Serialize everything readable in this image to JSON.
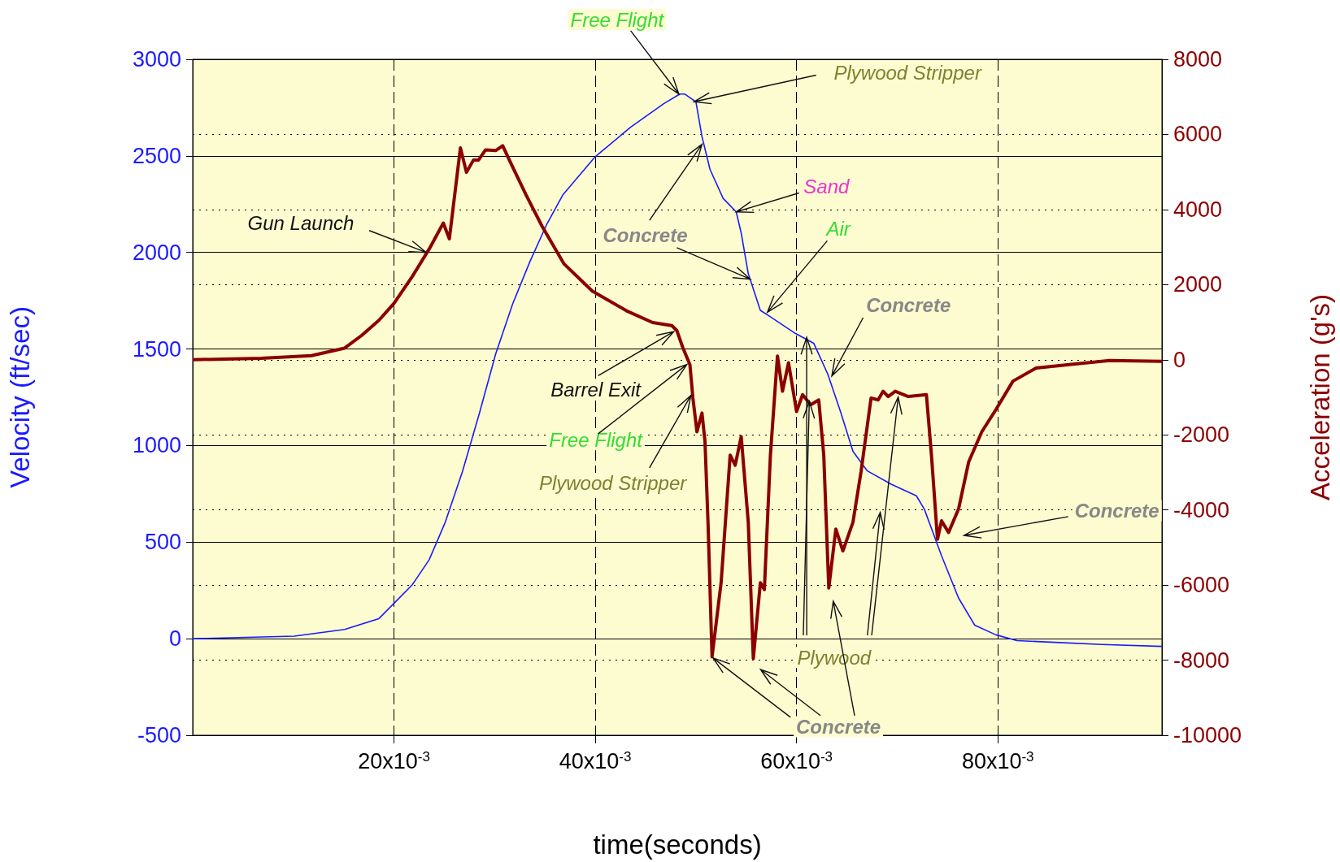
{
  "chart_data": {
    "type": "line",
    "xlabel": "time(seconds)",
    "ylabel": "Velocity (ft/sec)",
    "y2label": "Acceleration (g's)",
    "xlim": [
      0,
      0.0963
    ],
    "xticks": [
      {
        "value": 0.02,
        "label": "20x10$^{-3}$"
      },
      {
        "value": 0.04,
        "label": "40x10$^{-3}$"
      },
      {
        "value": 0.06,
        "label": "60x10$^{-3}$"
      },
      {
        "value": 0.08,
        "label": "80x10$^{-3}$"
      }
    ],
    "ylim": [
      -500,
      3000
    ],
    "yticks": [
      -500,
      0,
      500,
      1000,
      1500,
      2000,
      2500,
      3000
    ],
    "y2lim": [
      -10000,
      8000
    ],
    "y2ticks": [
      -10000,
      -8000,
      -6000,
      -4000,
      -2000,
      0,
      2000,
      4000,
      6000,
      8000
    ],
    "grid": true,
    "series": [
      {
        "color": "#1a1aff",
        "x": [
          0,
          0.0101,
          0.0151,
          0.0185,
          0.02,
          0.0218,
          0.0235,
          0.0251,
          0.0268,
          0.0285,
          0.0301,
          0.0318,
          0.0335,
          0.0352,
          0.0368,
          0.04,
          0.0435,
          0.0468,
          0.0484,
          0.0489,
          0.05,
          0.0506,
          0.0514,
          0.0527,
          0.054,
          0.0545,
          0.0552,
          0.0564,
          0.0573,
          0.0599,
          0.0617,
          0.0631,
          0.0644,
          0.0656,
          0.067,
          0.0694,
          0.0719,
          0.0727,
          0.0744,
          0.0761,
          0.0777,
          0.0798,
          0.0819,
          0.0861,
          0.0903,
          0.0963
        ],
        "values": [
          0,
          13,
          48,
          104,
          183,
          278,
          409,
          604,
          865,
          1170,
          1474,
          1735,
          1952,
          2148,
          2300,
          2496,
          2648,
          2770,
          2820,
          2820,
          2780,
          2600,
          2430,
          2280,
          2210,
          2100,
          1890,
          1700,
          1670,
          1580,
          1530,
          1370,
          1170,
          970,
          870,
          800,
          740,
          670,
          430,
          210,
          70,
          20,
          -10,
          -20,
          -30,
          -40
        ]
      },
      {
        "color": "#8b0000",
        "axis": "y2",
        "x": [
          0,
          0.0068,
          0.0118,
          0.0151,
          0.0168,
          0.0185,
          0.02,
          0.0218,
          0.0235,
          0.0249,
          0.0255,
          0.0266,
          0.0272,
          0.0279,
          0.0284,
          0.0291,
          0.0301,
          0.0308,
          0.0316,
          0.0331,
          0.0347,
          0.0369,
          0.0397,
          0.0432,
          0.0457,
          0.0476,
          0.0481,
          0.0487,
          0.0494,
          0.0497,
          0.0501,
          0.0506,
          0.0509,
          0.0512,
          0.0516,
          0.0525,
          0.0534,
          0.0539,
          0.0545,
          0.0552,
          0.0557,
          0.0564,
          0.0568,
          0.0574,
          0.0581,
          0.0586,
          0.0592,
          0.06,
          0.0606,
          0.0614,
          0.0622,
          0.0627,
          0.0632,
          0.0639,
          0.0646,
          0.0656,
          0.0664,
          0.0674,
          0.0681,
          0.0686,
          0.0691,
          0.0698,
          0.0711,
          0.0729,
          0.0734,
          0.074,
          0.0744,
          0.0751,
          0.0761,
          0.0771,
          0.0784,
          0.0798,
          0.0815,
          0.0838,
          0.0871,
          0.0911,
          0.0963
        ],
        "values": [
          0,
          40,
          110,
          310,
          650,
          1050,
          1500,
          2210,
          2950,
          3640,
          3220,
          5640,
          4990,
          5320,
          5320,
          5590,
          5570,
          5700,
          5240,
          4400,
          3560,
          2550,
          1830,
          1290,
          990,
          910,
          780,
          320,
          -130,
          -1020,
          -1920,
          -1420,
          -2180,
          -4330,
          -7910,
          -5940,
          -2540,
          -2810,
          -2050,
          -4330,
          -7960,
          -5940,
          -6120,
          -2540,
          100,
          -840,
          -80,
          -1380,
          -930,
          -1200,
          -1070,
          -2540,
          -6080,
          -4510,
          -5090,
          -4330,
          -2990,
          -1020,
          -1070,
          -840,
          -980,
          -840,
          -980,
          -930,
          -2540,
          -4780,
          -4290,
          -4600,
          -3970,
          -2720,
          -1920,
          -1330,
          -570,
          -220,
          -130,
          -20,
          -40
        ]
      }
    ],
    "annotations": [
      {
        "text": "Free Flight",
        "x": 0.0483,
        "y": 2820
      },
      {
        "text": "Plywood Stripper",
        "x": 0.0498,
        "y": 2780
      },
      {
        "text": "Sand",
        "x": 0.054,
        "y": 2210
      },
      {
        "text": "Air",
        "x": 0.0571,
        "y": 1690
      },
      {
        "text": "Concrete",
        "x": 0.0506,
        "y": 2560
      },
      {
        "text": "Concrete",
        "x": 0.0635,
        "y": 1360
      },
      {
        "text": "Gun Launch",
        "x": 0.0232,
        "y": 2000
      },
      {
        "text": "Barrel Exit",
        "x": 0.0478,
        "y": 1590
      },
      {
        "text": "Free Flight",
        "x": 0.0491,
        "y": 1420
      },
      {
        "text": "Plywood Stripper",
        "x": 0.0495,
        "y": 1260
      },
      {
        "text": "Plywood",
        "x": 0.061,
        "y": 1560
      },
      {
        "text": "Concrete",
        "x": 0.0517,
        "y": -100
      },
      "Concrete"
    ]
  }
}
